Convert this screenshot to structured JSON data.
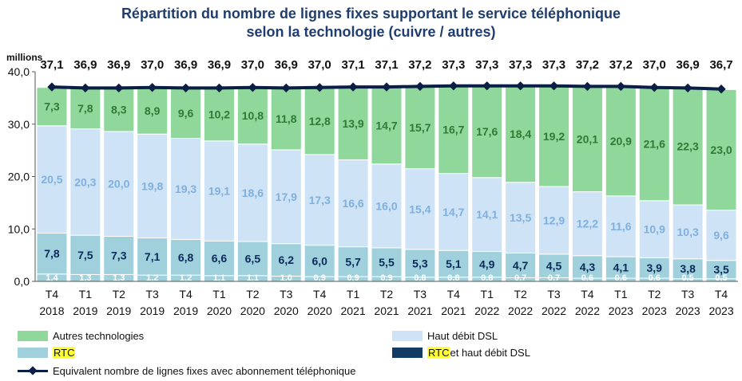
{
  "title": {
    "line1": "Répartition du nombre de lignes fixes supportant le service téléphonique",
    "line2": "selon la technologie (cuivre / autres)"
  },
  "chart_data": {
    "type": "bar",
    "stacked": true,
    "unit_label": "millions",
    "ylim": [
      0,
      40
    ],
    "yticks": [
      "0,0",
      "10,0",
      "20,0",
      "30,0",
      "40,0"
    ],
    "categories": [
      [
        "T4",
        "2018"
      ],
      [
        "T1",
        "2019"
      ],
      [
        "T2",
        "2019"
      ],
      [
        "T3",
        "2019"
      ],
      [
        "T4",
        "2019"
      ],
      [
        "T1",
        "2020"
      ],
      [
        "T2",
        "2020"
      ],
      [
        "T3",
        "2020"
      ],
      [
        "T4",
        "2020"
      ],
      [
        "T1",
        "2021"
      ],
      [
        "T2",
        "2021"
      ],
      [
        "T3",
        "2021"
      ],
      [
        "T4",
        "2021"
      ],
      [
        "T1",
        "2022"
      ],
      [
        "T2",
        "2022"
      ],
      [
        "T3",
        "2022"
      ],
      [
        "T4",
        "2022"
      ],
      [
        "T1",
        "2023"
      ],
      [
        "T2",
        "2023"
      ],
      [
        "T3",
        "2023"
      ],
      [
        "T4",
        "2023"
      ]
    ],
    "series": [
      {
        "name": "RTC",
        "color": "#9fd0dc",
        "labelColor": "#ffffff",
        "values": [
          1.4,
          1.3,
          1.3,
          1.2,
          1.2,
          1.1,
          1.1,
          1.0,
          0.9,
          0.9,
          0.9,
          0.8,
          0.8,
          0.8,
          0.7,
          0.7,
          0.6,
          0.6,
          0.6,
          0.5,
          0.5
        ],
        "labels": [
          "1,4",
          "1,3",
          "1,3",
          "1,2",
          "1,2",
          "1,1",
          "1,1",
          "1,0",
          "0,9",
          "0,9",
          "0,9",
          "0,8",
          "0,8",
          "0,8",
          "0,7",
          "0,7",
          "0,6",
          "0,6",
          "0,6",
          "0,5",
          "0,5"
        ]
      },
      {
        "name": "RTC et haut débit DSL",
        "color": "#9fd0dc",
        "labelColor": "#0b2a5b",
        "values": [
          7.8,
          7.5,
          7.3,
          7.1,
          6.8,
          6.6,
          6.5,
          6.2,
          6.0,
          5.7,
          5.5,
          5.3,
          5.1,
          4.9,
          4.7,
          4.5,
          4.3,
          4.1,
          3.9,
          3.8,
          3.5
        ],
        "labels": [
          "7,8",
          "7,5",
          "7,3",
          "7,1",
          "6,8",
          "6,6",
          "6,5",
          "6,2",
          "6,0",
          "5,7",
          "5,5",
          "5,3",
          "5,1",
          "4,9",
          "4,7",
          "4,5",
          "4,3",
          "4,1",
          "3,9",
          "3,8",
          "3,5"
        ]
      },
      {
        "name": "Haut débit DSL",
        "color": "#cfe3f6",
        "labelColor": "#7fb0de",
        "values": [
          20.5,
          20.3,
          20.0,
          19.8,
          19.3,
          19.1,
          18.6,
          17.9,
          17.3,
          16.6,
          16.0,
          15.4,
          14.7,
          14.1,
          13.5,
          12.9,
          12.2,
          11.6,
          10.9,
          10.3,
          9.6
        ],
        "labels": [
          "20,5",
          "20,3",
          "20,0",
          "19,8",
          "19,3",
          "19,1",
          "18,6",
          "17,9",
          "17,3",
          "16,6",
          "16,0",
          "15,4",
          "14,7",
          "14,1",
          "13,5",
          "12,9",
          "12,2",
          "11,6",
          "10,9",
          "10,3",
          "9,6"
        ]
      },
      {
        "name": "Autres technologies",
        "color": "#8fd79b",
        "labelColor": "#2f7a35",
        "values": [
          7.3,
          7.8,
          8.3,
          8.9,
          9.6,
          10.2,
          10.8,
          11.8,
          12.8,
          13.9,
          14.7,
          15.7,
          16.7,
          17.6,
          18.4,
          19.2,
          20.1,
          20.9,
          21.6,
          22.3,
          23.0
        ],
        "labels": [
          "7,3",
          "7,8",
          "8,3",
          "8,9",
          "9,6",
          "10,2",
          "10,8",
          "11,8",
          "12,8",
          "13,9",
          "14,7",
          "15,7",
          "16,7",
          "17,6",
          "18,4",
          "19,2",
          "20,1",
          "20,9",
          "21,6",
          "22,3",
          "23,0"
        ]
      }
    ],
    "line": {
      "name": "Equivalent nombre de lignes fixes avec abonnement téléphonique",
      "color": "#0b1e45",
      "values": [
        37.1,
        36.9,
        36.9,
        37.0,
        36.9,
        36.9,
        37.0,
        36.9,
        37.0,
        37.1,
        37.1,
        37.2,
        37.3,
        37.3,
        37.3,
        37.3,
        37.2,
        37.2,
        37.0,
        36.9,
        36.7
      ],
      "labels": [
        "37,1",
        "36,9",
        "36,9",
        "37,0",
        "36,9",
        "36,9",
        "37,0",
        "36,9",
        "37,0",
        "37,1",
        "37,1",
        "37,2",
        "37,3",
        "37,3",
        "37,3",
        "37,3",
        "37,2",
        "37,2",
        "37,0",
        "36,9",
        "36,7"
      ]
    }
  },
  "legend": {
    "autres": "Autres technologies",
    "haut_debit": "Haut débit DSL",
    "rtc": "RTC",
    "rtc_dsl_prefix": "RTC",
    "rtc_dsl_suffix": " et haut débit DSL",
    "line": "Equivalent nombre de lignes fixes avec abonnement téléphonique",
    "colors": {
      "autres": "#8fd79b",
      "haut_debit": "#cfe3f6",
      "rtc": "#9fd0dc",
      "rtc_dsl": "#123a62"
    }
  }
}
